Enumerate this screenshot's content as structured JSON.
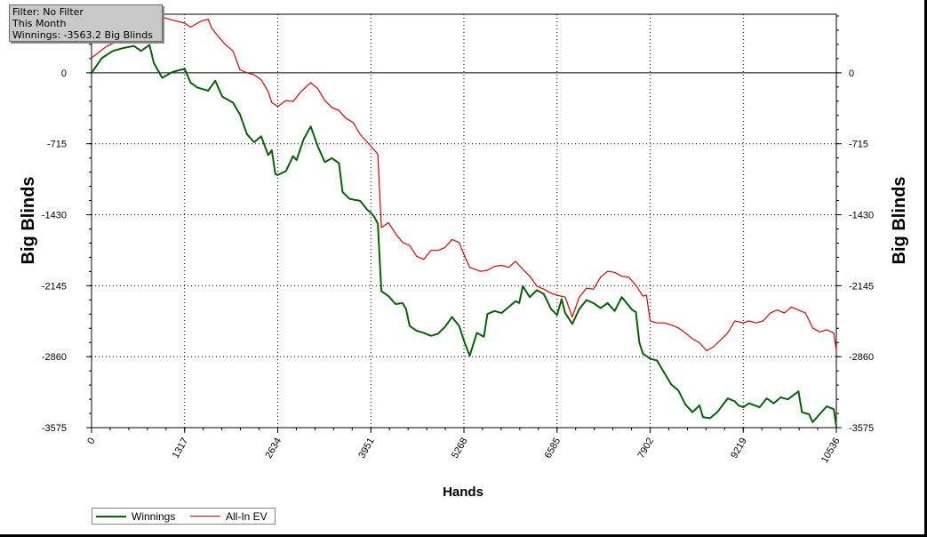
{
  "info_box": {
    "filter": "Filter: No Filter",
    "period": "This Month",
    "winnings": "Winnings: -3563.2 Big Blinds"
  },
  "chart_data": {
    "type": "line",
    "xlabel": "Hands",
    "ylabel": "Big Blinds",
    "ylabel_right": "Big Blinds",
    "xlim": [
      0,
      10536
    ],
    "ylim": [
      -3575,
      590
    ],
    "x_ticks": [
      0,
      1317,
      2634,
      3951,
      5268,
      6585,
      7902,
      9219,
      10536
    ],
    "y_ticks": [
      0,
      -715,
      -1430,
      -2145,
      -2860,
      -3575
    ],
    "grid": true,
    "legend_position": "bottom-left",
    "series": [
      {
        "name": "Winnings",
        "color": "#006400",
        "points": [
          [
            0,
            0
          ],
          [
            150,
            150
          ],
          [
            300,
            220
          ],
          [
            450,
            250
          ],
          [
            600,
            270
          ],
          [
            700,
            220
          ],
          [
            820,
            280
          ],
          [
            880,
            100
          ],
          [
            1000,
            -50
          ],
          [
            1150,
            10
          ],
          [
            1317,
            40
          ],
          [
            1400,
            -100
          ],
          [
            1500,
            -150
          ],
          [
            1650,
            -180
          ],
          [
            1750,
            -80
          ],
          [
            1850,
            -240
          ],
          [
            2000,
            -300
          ],
          [
            2100,
            -420
          ],
          [
            2200,
            -620
          ],
          [
            2300,
            -700
          ],
          [
            2400,
            -640
          ],
          [
            2500,
            -830
          ],
          [
            2550,
            -780
          ],
          [
            2600,
            -1020
          ],
          [
            2634,
            -1030
          ],
          [
            2750,
            -990
          ],
          [
            2850,
            -840
          ],
          [
            2900,
            -880
          ],
          [
            3000,
            -670
          ],
          [
            3100,
            -540
          ],
          [
            3200,
            -740
          ],
          [
            3300,
            -900
          ],
          [
            3400,
            -860
          ],
          [
            3500,
            -910
          ],
          [
            3550,
            -1200
          ],
          [
            3650,
            -1270
          ],
          [
            3800,
            -1290
          ],
          [
            3900,
            -1380
          ],
          [
            3951,
            -1410
          ],
          [
            4000,
            -1450
          ],
          [
            4050,
            -1520
          ],
          [
            4100,
            -2200
          ],
          [
            4200,
            -2250
          ],
          [
            4300,
            -2330
          ],
          [
            4400,
            -2320
          ],
          [
            4450,
            -2380
          ],
          [
            4500,
            -2550
          ],
          [
            4600,
            -2600
          ],
          [
            4700,
            -2620
          ],
          [
            4800,
            -2650
          ],
          [
            4900,
            -2630
          ],
          [
            5000,
            -2560
          ],
          [
            5100,
            -2460
          ],
          [
            5200,
            -2550
          ],
          [
            5268,
            -2700
          ],
          [
            5350,
            -2850
          ],
          [
            5450,
            -2620
          ],
          [
            5550,
            -2660
          ],
          [
            5600,
            -2430
          ],
          [
            5700,
            -2400
          ],
          [
            5800,
            -2420
          ],
          [
            5900,
            -2360
          ],
          [
            6000,
            -2300
          ],
          [
            6050,
            -2320
          ],
          [
            6100,
            -2150
          ],
          [
            6200,
            -2260
          ],
          [
            6300,
            -2190
          ],
          [
            6400,
            -2230
          ],
          [
            6500,
            -2380
          ],
          [
            6585,
            -2440
          ],
          [
            6650,
            -2280
          ],
          [
            6700,
            -2420
          ],
          [
            6800,
            -2530
          ],
          [
            6900,
            -2380
          ],
          [
            7000,
            -2290
          ],
          [
            7100,
            -2320
          ],
          [
            7200,
            -2370
          ],
          [
            7300,
            -2320
          ],
          [
            7400,
            -2400
          ],
          [
            7500,
            -2260
          ],
          [
            7650,
            -2390
          ],
          [
            7700,
            -2410
          ],
          [
            7750,
            -2720
          ],
          [
            7800,
            -2830
          ],
          [
            7902,
            -2880
          ],
          [
            8000,
            -2900
          ],
          [
            8100,
            -3020
          ],
          [
            8200,
            -3140
          ],
          [
            8300,
            -3200
          ],
          [
            8400,
            -3340
          ],
          [
            8500,
            -3420
          ],
          [
            8600,
            -3350
          ],
          [
            8650,
            -3470
          ],
          [
            8750,
            -3480
          ],
          [
            8850,
            -3420
          ],
          [
            9000,
            -3280
          ],
          [
            9100,
            -3310
          ],
          [
            9150,
            -3350
          ],
          [
            9219,
            -3370
          ],
          [
            9300,
            -3330
          ],
          [
            9450,
            -3370
          ],
          [
            9550,
            -3280
          ],
          [
            9650,
            -3330
          ],
          [
            9750,
            -3270
          ],
          [
            9850,
            -3290
          ],
          [
            10000,
            -3210
          ],
          [
            10050,
            -3420
          ],
          [
            10150,
            -3440
          ],
          [
            10200,
            -3520
          ],
          [
            10300,
            -3440
          ],
          [
            10400,
            -3360
          ],
          [
            10500,
            -3390
          ],
          [
            10536,
            -3563.2
          ]
        ]
      },
      {
        "name": "All-In EV",
        "color": "#e00000",
        "points": [
          [
            0,
            150
          ],
          [
            200,
            260
          ],
          [
            400,
            330
          ],
          [
            600,
            480
          ],
          [
            800,
            560
          ],
          [
            1000,
            560
          ],
          [
            1150,
            530
          ],
          [
            1317,
            500
          ],
          [
            1400,
            460
          ],
          [
            1550,
            520
          ],
          [
            1650,
            540
          ],
          [
            1700,
            450
          ],
          [
            1800,
            360
          ],
          [
            1900,
            280
          ],
          [
            2000,
            220
          ],
          [
            2100,
            30
          ],
          [
            2200,
            0
          ],
          [
            2300,
            -20
          ],
          [
            2400,
            -70
          ],
          [
            2500,
            -190
          ],
          [
            2550,
            -300
          ],
          [
            2634,
            -340
          ],
          [
            2750,
            -280
          ],
          [
            2850,
            -290
          ],
          [
            2950,
            -200
          ],
          [
            3050,
            -130
          ],
          [
            3100,
            -100
          ],
          [
            3200,
            -160
          ],
          [
            3300,
            -280
          ],
          [
            3400,
            -350
          ],
          [
            3500,
            -380
          ],
          [
            3600,
            -460
          ],
          [
            3700,
            -500
          ],
          [
            3800,
            -620
          ],
          [
            3900,
            -700
          ],
          [
            3951,
            -740
          ],
          [
            4050,
            -820
          ],
          [
            4100,
            -1560
          ],
          [
            4200,
            -1510
          ],
          [
            4300,
            -1620
          ],
          [
            4400,
            -1710
          ],
          [
            4500,
            -1740
          ],
          [
            4600,
            -1850
          ],
          [
            4700,
            -1880
          ],
          [
            4800,
            -1790
          ],
          [
            4900,
            -1790
          ],
          [
            5000,
            -1760
          ],
          [
            5100,
            -1680
          ],
          [
            5200,
            -1710
          ],
          [
            5268,
            -1830
          ],
          [
            5350,
            -1960
          ],
          [
            5500,
            -2000
          ],
          [
            5600,
            -1990
          ],
          [
            5700,
            -1950
          ],
          [
            5800,
            -1940
          ],
          [
            5900,
            -1960
          ],
          [
            6000,
            -1900
          ],
          [
            6100,
            -1980
          ],
          [
            6200,
            -2050
          ],
          [
            6300,
            -2150
          ],
          [
            6400,
            -2180
          ],
          [
            6500,
            -2220
          ],
          [
            6585,
            -2240
          ],
          [
            6700,
            -2260
          ],
          [
            6800,
            -2460
          ],
          [
            6900,
            -2260
          ],
          [
            7000,
            -2170
          ],
          [
            7100,
            -2180
          ],
          [
            7200,
            -2060
          ],
          [
            7300,
            -2000
          ],
          [
            7400,
            -2010
          ],
          [
            7500,
            -2050
          ],
          [
            7600,
            -2060
          ],
          [
            7700,
            -2140
          ],
          [
            7800,
            -2250
          ],
          [
            7850,
            -2240
          ],
          [
            7902,
            -2500
          ],
          [
            8000,
            -2520
          ],
          [
            8100,
            -2520
          ],
          [
            8200,
            -2540
          ],
          [
            8300,
            -2570
          ],
          [
            8400,
            -2620
          ],
          [
            8500,
            -2680
          ],
          [
            8600,
            -2720
          ],
          [
            8700,
            -2800
          ],
          [
            8800,
            -2760
          ],
          [
            8900,
            -2690
          ],
          [
            9000,
            -2620
          ],
          [
            9100,
            -2500
          ],
          [
            9219,
            -2520
          ],
          [
            9300,
            -2500
          ],
          [
            9400,
            -2520
          ],
          [
            9500,
            -2500
          ],
          [
            9600,
            -2420
          ],
          [
            9700,
            -2390
          ],
          [
            9800,
            -2420
          ],
          [
            9900,
            -2360
          ],
          [
            10000,
            -2390
          ],
          [
            10100,
            -2420
          ],
          [
            10200,
            -2570
          ],
          [
            10300,
            -2610
          ],
          [
            10400,
            -2590
          ],
          [
            10500,
            -2620
          ],
          [
            10536,
            -2800
          ]
        ]
      }
    ]
  }
}
